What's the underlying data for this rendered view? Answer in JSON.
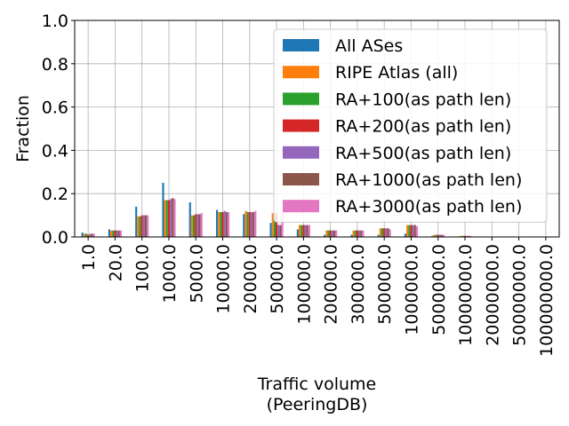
{
  "chart_data": {
    "type": "bar",
    "title": "",
    "xlabel": "Traffic volume\n(PeeringDB)",
    "ylabel": "Fraction",
    "ylim": [
      0,
      1.0
    ],
    "yticks": [
      "0.0",
      "0.2",
      "0.4",
      "0.6",
      "0.8",
      "1.0"
    ],
    "grid": true,
    "legend_position": "upper-right",
    "categories": [
      "1.0",
      "20.0",
      "100.0",
      "1000.0",
      "5000.0",
      "10000.0",
      "20000.0",
      "50000.0",
      "100000.0",
      "200000.0",
      "300000.0",
      "500000.0",
      "1000000.0",
      "5000000.0",
      "10000000.0",
      "20000000.0",
      "50000000.0",
      "100000000.0"
    ],
    "series": [
      {
        "name": "All ASes",
        "color": "#1f77b4",
        "values": [
          0.02,
          0.035,
          0.14,
          0.25,
          0.16,
          0.125,
          0.105,
          0.065,
          0.035,
          0.01,
          0.01,
          0.01,
          0.015,
          0.005,
          0.003,
          0.001,
          0.0005,
          0.0005
        ]
      },
      {
        "name": "RIPE Atlas (all)",
        "color": "#ff7f0e",
        "values": [
          0.015,
          0.03,
          0.095,
          0.17,
          0.1,
          0.115,
          0.12,
          0.11,
          0.055,
          0.03,
          0.03,
          0.04,
          0.055,
          0.01,
          0.005,
          0.0,
          0.0,
          0.0
        ]
      },
      {
        "name": "RA+100(as path len)",
        "color": "#2ca02c",
        "values": [
          0.015,
          0.03,
          0.095,
          0.17,
          0.1,
          0.115,
          0.115,
          0.11,
          0.055,
          0.03,
          0.03,
          0.04,
          0.055,
          0.01,
          0.005,
          0.0,
          0.0,
          0.0
        ]
      },
      {
        "name": "RA+200(as path len)",
        "color": "#d62728",
        "values": [
          0.01,
          0.03,
          0.1,
          0.17,
          0.105,
          0.115,
          0.115,
          0.11,
          0.055,
          0.03,
          0.03,
          0.04,
          0.055,
          0.01,
          0.005,
          0.0,
          0.0,
          0.0
        ]
      },
      {
        "name": "RA+500(as path len)",
        "color": "#9467bd",
        "values": [
          0.015,
          0.03,
          0.1,
          0.175,
          0.105,
          0.12,
          0.115,
          0.055,
          0.055,
          0.03,
          0.03,
          0.04,
          0.055,
          0.01,
          0.005,
          0.0,
          0.0,
          0.0
        ]
      },
      {
        "name": "RA+1000(as path len)",
        "color": "#8c564b",
        "values": [
          0.015,
          0.03,
          0.1,
          0.18,
          0.105,
          0.115,
          0.115,
          0.055,
          0.055,
          0.03,
          0.03,
          0.04,
          0.055,
          0.01,
          0.005,
          0.0,
          0.0,
          0.0
        ]
      },
      {
        "name": "RA+3000(as path len)",
        "color": "#e377c2",
        "values": [
          0.015,
          0.03,
          0.1,
          0.175,
          0.11,
          0.115,
          0.12,
          0.11,
          0.055,
          0.03,
          0.03,
          0.035,
          0.05,
          0.01,
          0.005,
          0.0,
          0.0,
          0.0
        ]
      }
    ]
  }
}
